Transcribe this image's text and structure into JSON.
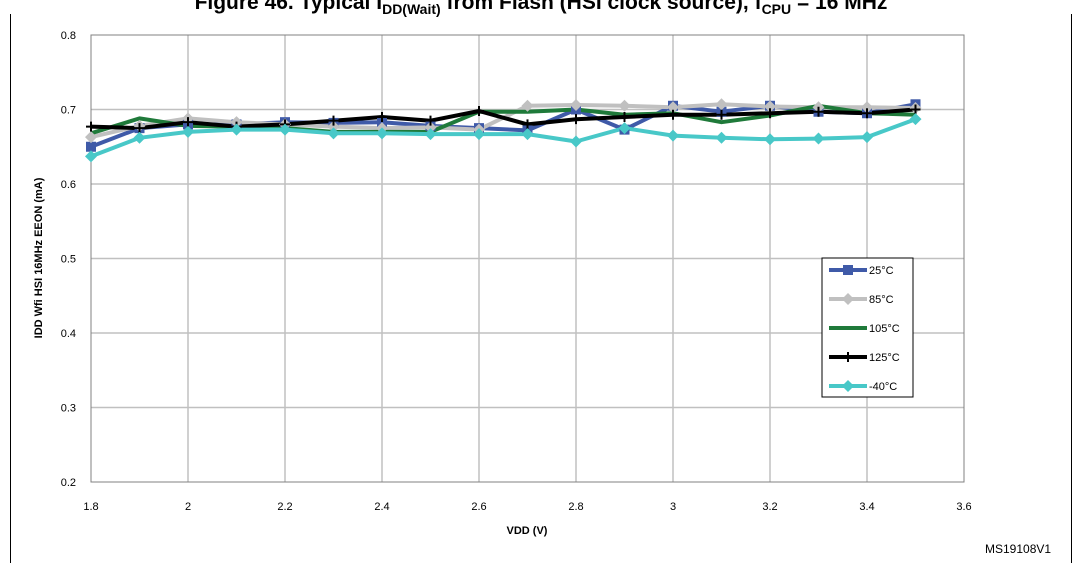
{
  "figure": {
    "title_prefix": "Figure 46. Typical I",
    "title_sub1": "DD(Wait)",
    "title_mid": " from Flash (HSI clock source), f",
    "title_sub2": "CPU",
    "title_suffix": " = 16 MHz",
    "code": "MS19108V1"
  },
  "chart_data": {
    "type": "line",
    "title": "",
    "xlabel": "VDD (V)",
    "ylabel": "IDD Wfi HSI 16MHz EEON (mA)",
    "xlim": [
      1.8,
      3.6
    ],
    "ylim": [
      0.2,
      0.8
    ],
    "x_ticks": [
      "1.8",
      "2",
      "2.2",
      "2.4",
      "2.6",
      "2.8",
      "3",
      "3.2",
      "3.4",
      "3.6"
    ],
    "y_ticks": [
      "0.2",
      "0.3",
      "0.4",
      "0.5",
      "0.6",
      "0.7",
      "0.8"
    ],
    "grid": true,
    "legend_position": "right",
    "x": [
      1.8,
      1.9,
      2.0,
      2.1,
      2.2,
      2.3,
      2.4,
      2.5,
      2.6,
      2.7,
      2.8,
      2.9,
      3.0,
      3.1,
      3.2,
      3.3,
      3.4,
      3.5
    ],
    "series": [
      {
        "name": "25°C",
        "color": "#3f5aa8",
        "marker": "square",
        "values": [
          0.65,
          0.675,
          0.68,
          0.68,
          0.683,
          0.682,
          0.683,
          0.678,
          0.675,
          0.672,
          0.7,
          0.673,
          0.705,
          0.697,
          0.705,
          0.697,
          0.695,
          0.707
        ]
      },
      {
        "name": "85°C",
        "color": "#c0c0c0",
        "marker": "diamond",
        "values": [
          0.663,
          0.678,
          0.688,
          0.683,
          0.68,
          0.677,
          0.675,
          0.676,
          0.673,
          0.705,
          0.706,
          0.705,
          0.703,
          0.707,
          0.704,
          0.703,
          0.703,
          0.702
        ]
      },
      {
        "name": "105°C",
        "color": "#1f7a3a",
        "marker": "none",
        "values": [
          0.668,
          0.688,
          0.678,
          0.677,
          0.675,
          0.67,
          0.67,
          0.67,
          0.697,
          0.697,
          0.7,
          0.693,
          0.695,
          0.683,
          0.692,
          0.705,
          0.695,
          0.693
        ]
      },
      {
        "name": "125°C",
        "color": "#000000",
        "marker": "plus",
        "values": [
          0.677,
          0.675,
          0.683,
          0.677,
          0.68,
          0.685,
          0.69,
          0.685,
          0.698,
          0.68,
          0.687,
          0.69,
          0.693,
          0.693,
          0.695,
          0.697,
          0.695,
          0.7
        ]
      },
      {
        "name": "-40°C",
        "color": "#48c8c8",
        "marker": "diamond",
        "values": [
          0.637,
          0.662,
          0.67,
          0.673,
          0.673,
          0.668,
          0.668,
          0.667,
          0.667,
          0.667,
          0.657,
          0.675,
          0.665,
          0.662,
          0.66,
          0.661,
          0.663,
          0.687
        ]
      }
    ]
  }
}
